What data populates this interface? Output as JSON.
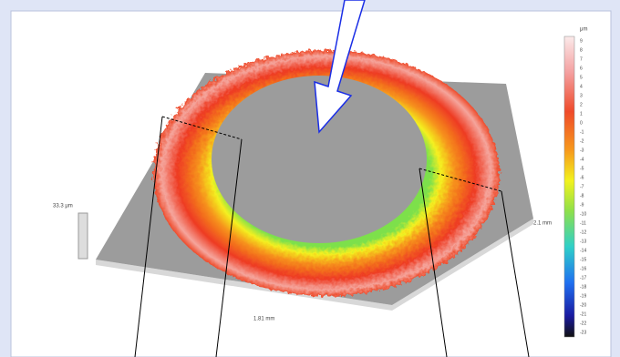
{
  "labels": {
    "height_scale": "33.3 μm",
    "width": "1.81 mm",
    "depth": "2.1 mm"
  },
  "colorbar": {
    "unit": "μm",
    "ticks": [
      9,
      8,
      7,
      6,
      5,
      4,
      3,
      2,
      1,
      0,
      -1,
      -2,
      -3,
      -4,
      -5,
      -6,
      -7,
      -8,
      -9,
      -10,
      -11,
      -12,
      -13,
      -14,
      -15,
      -16,
      -17,
      -18,
      -19,
      -20,
      -21,
      -22,
      -23
    ]
  }
}
